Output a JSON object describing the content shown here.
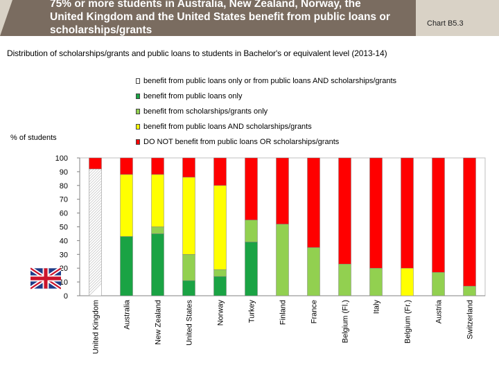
{
  "header": {
    "title": "75% or more students in Australia, New Zealand, Norway, the United Kingdom and the United States benefit from public loans or scholarships/grants",
    "chart_id": "Chart B5.3"
  },
  "colors": {
    "banner_dark": "#7a6c60",
    "banner_light": "#d9d2c6",
    "loans_or_both": "#ffffff",
    "loans_only": "#1aa344",
    "grants_only": "#92d050",
    "loans_and_grants": "#ffff00",
    "no_benefit": "#ff0000"
  },
  "chart_data": {
    "type": "bar",
    "stacked": true,
    "title": "Distribution of scholarships/grants and public loans to students in Bachelor's or equivalent level (2013-14)",
    "xlabel": "",
    "ylabel": "% of students",
    "ylim": [
      0,
      100
    ],
    "yticks": [
      0,
      10,
      20,
      30,
      40,
      50,
      60,
      70,
      80,
      90,
      100
    ],
    "legend_position": "top",
    "categories": [
      "United Kingdom",
      "Australia",
      "New Zealand",
      "United States",
      "Norway",
      "Turkey",
      "Finland",
      "France",
      "Belgium (Fl.)",
      "Italy",
      "Belgium (Fr.)",
      "Austria",
      "Switzerland"
    ],
    "series": [
      {
        "name": "benefit from public loans only or from public loans AND scholarships/grants",
        "key": "loans_or_both",
        "values": [
          92,
          0,
          0,
          0,
          0,
          0,
          0,
          0,
          0,
          0,
          0,
          0,
          0
        ]
      },
      {
        "name": "benefit from public loans only",
        "key": "loans_only",
        "values": [
          0,
          43,
          45,
          11,
          14,
          39,
          0,
          0,
          0,
          0,
          0,
          0,
          0
        ]
      },
      {
        "name": "benefit from scholarships/grants only",
        "key": "grants_only",
        "values": [
          0,
          0,
          5,
          19,
          5,
          16,
          52,
          35,
          23,
          20,
          0,
          17,
          7
        ]
      },
      {
        "name": "benefit from public loans AND scholarships/grants",
        "key": "loans_and_grants",
        "values": [
          0,
          45,
          38,
          56,
          61,
          0,
          0,
          0,
          0,
          0,
          20,
          0,
          0
        ]
      },
      {
        "name": " DO NOT benefit from public loans OR scholarships/grants",
        "key": "no_benefit",
        "values": [
          8,
          12,
          12,
          14,
          20,
          45,
          48,
          65,
          77,
          80,
          80,
          83,
          93
        ]
      }
    ]
  }
}
